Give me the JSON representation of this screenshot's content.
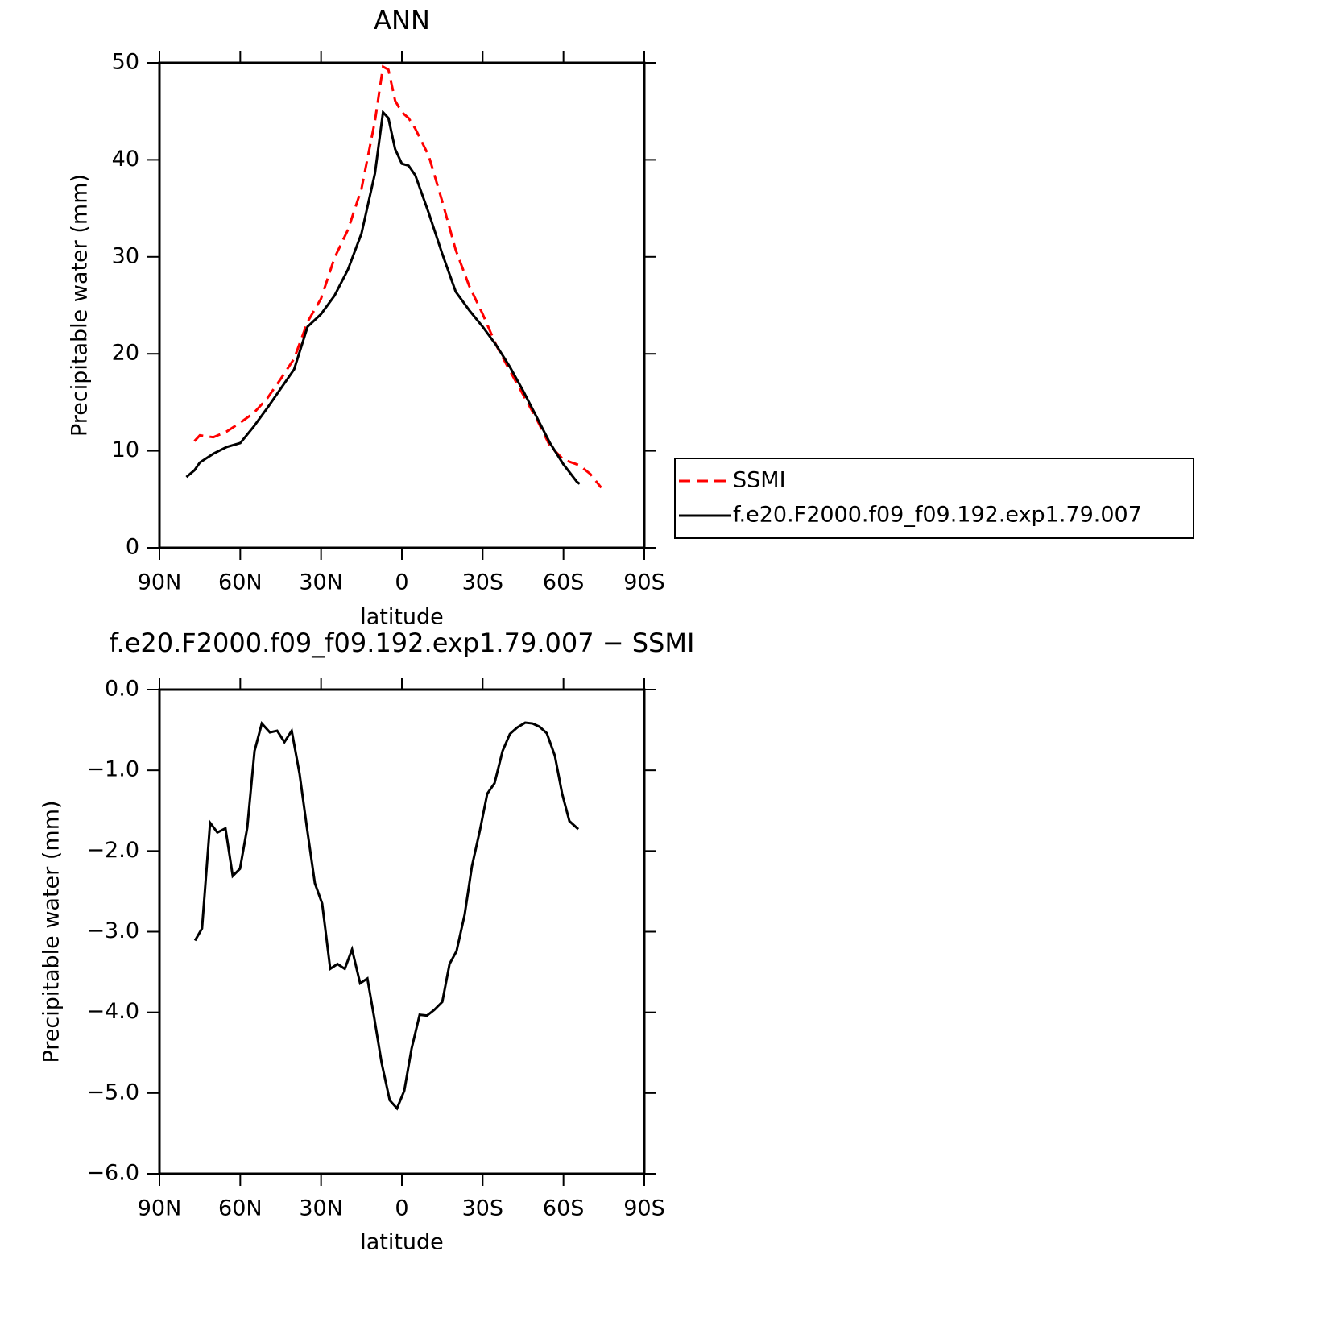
{
  "chart_data": [
    {
      "type": "line",
      "title": "ANN",
      "x_label": "latitude",
      "y_label": "Precipitable water (mm)",
      "x": [
        80,
        77,
        75,
        70,
        65,
        60,
        55,
        50,
        45,
        40,
        35,
        30,
        25,
        20,
        15,
        10,
        7,
        5,
        2.5,
        0,
        -2.5,
        -5,
        -10,
        -15,
        -20,
        -25,
        -30,
        -35,
        -40,
        -45,
        -50,
        -55,
        -60,
        -65,
        -66,
        -70,
        -74
      ],
      "series": [
        {
          "name": "SSMI",
          "color": "#ff0000",
          "style": "dashed",
          "values": [
            null,
            11.0,
            11.6,
            11.4,
            12.0,
            12.9,
            13.9,
            15.4,
            17.4,
            19.5,
            23.3,
            25.7,
            29.9,
            32.8,
            37.0,
            44.0,
            49.6,
            49.3,
            46.1,
            44.9,
            44.3,
            43.2,
            40.4,
            35.7,
            30.7,
            27.0,
            24.1,
            20.9,
            18.3,
            15.8,
            13.3,
            10.5,
            9.1,
            8.6,
            8.5,
            7.6,
            6.2
          ]
        },
        {
          "name": "f.e20.F2000.f09_f09.192.exp1.79.007",
          "color": "#000000",
          "style": "solid",
          "values": [
            7.3,
            8.0,
            8.8,
            9.7,
            10.4,
            10.8,
            12.5,
            14.4,
            16.4,
            18.4,
            22.8,
            24.1,
            26.0,
            28.7,
            32.4,
            38.6,
            44.9,
            44.3,
            41.1,
            39.6,
            39.4,
            38.4,
            34.5,
            30.3,
            26.4,
            24.5,
            22.8,
            20.9,
            18.7,
            16.2,
            13.5,
            10.8,
            8.6,
            6.8,
            6.6,
            null,
            null
          ]
        }
      ],
      "xlim": [
        90,
        -90
      ],
      "xticks": [
        {
          "value": 90,
          "label": "90N"
        },
        {
          "value": 60,
          "label": "60N"
        },
        {
          "value": 30,
          "label": "30N"
        },
        0,
        {
          "value": -30,
          "label": "30S"
        },
        {
          "value": -60,
          "label": "60S"
        },
        {
          "value": -90,
          "label": "90S"
        }
      ],
      "ylim": [
        0,
        50
      ],
      "yticks": [
        0,
        10,
        20,
        30,
        40,
        50
      ],
      "legend_position": "right"
    },
    {
      "type": "line",
      "title": "f.e20.F2000.f09_f09.192.exp1.79.007 − SSMI",
      "x_label": "latitude",
      "y_label": "Precipitable water (mm)",
      "x": [
        76.8,
        74.2,
        71.2,
        68.5,
        65.5,
        62.8,
        60.1,
        57.4,
        54.7,
        52.0,
        49.0,
        46.3,
        43.6,
        40.9,
        38.0,
        35.3,
        32.3,
        29.6,
        26.6,
        23.9,
        21.2,
        18.5,
        15.5,
        12.8,
        10.2,
        7.5,
        4.5,
        1.8,
        -0.9,
        -3.6,
        -6.6,
        -9.3,
        -12.0,
        -15.0,
        -17.7,
        -20.3,
        -23.3,
        -26.0,
        -29.0,
        -31.7,
        -34.4,
        -37.4,
        -40.1,
        -42.8,
        -45.8,
        -48.5,
        -51.1,
        -53.8,
        -56.8,
        -59.5,
        -62.2,
        -65.5
      ],
      "values": [
        -3.11,
        -2.96,
        -1.65,
        -1.77,
        -1.72,
        -2.31,
        -2.22,
        -1.71,
        -0.76,
        -0.42,
        -0.53,
        -0.51,
        -0.65,
        -0.51,
        -1.04,
        -1.7,
        -2.4,
        -2.65,
        -3.46,
        -3.4,
        -3.46,
        -3.22,
        -3.64,
        -3.58,
        -4.08,
        -4.63,
        -5.09,
        -5.19,
        -4.97,
        -4.45,
        -4.03,
        -4.04,
        -3.97,
        -3.87,
        -3.4,
        -3.24,
        -2.79,
        -2.19,
        -1.74,
        -1.29,
        -1.16,
        -0.76,
        -0.55,
        -0.47,
        -0.41,
        -0.42,
        -0.46,
        -0.54,
        -0.82,
        -1.29,
        -1.63,
        -1.73
      ],
      "color": "#000000",
      "style": "solid",
      "xlim": [
        90,
        -90
      ],
      "xticks": [
        {
          "value": 90,
          "label": "90N"
        },
        {
          "value": 60,
          "label": "60N"
        },
        {
          "value": 30,
          "label": "30N"
        },
        0,
        {
          "value": -30,
          "label": "30S"
        },
        {
          "value": -60,
          "label": "60S"
        },
        {
          "value": -90,
          "label": "90S"
        }
      ],
      "ylim": [
        -6,
        0
      ],
      "yticks": [
        {
          "value": 0,
          "label": "0.0"
        },
        {
          "value": -1,
          "label": "−1.0"
        },
        {
          "value": -2,
          "label": "−2.0"
        },
        {
          "value": -3,
          "label": "−3.0"
        },
        {
          "value": -4,
          "label": "−4.0"
        },
        {
          "value": -5,
          "label": "−5.0"
        },
        {
          "value": -6,
          "label": "−6.0"
        }
      ]
    }
  ]
}
